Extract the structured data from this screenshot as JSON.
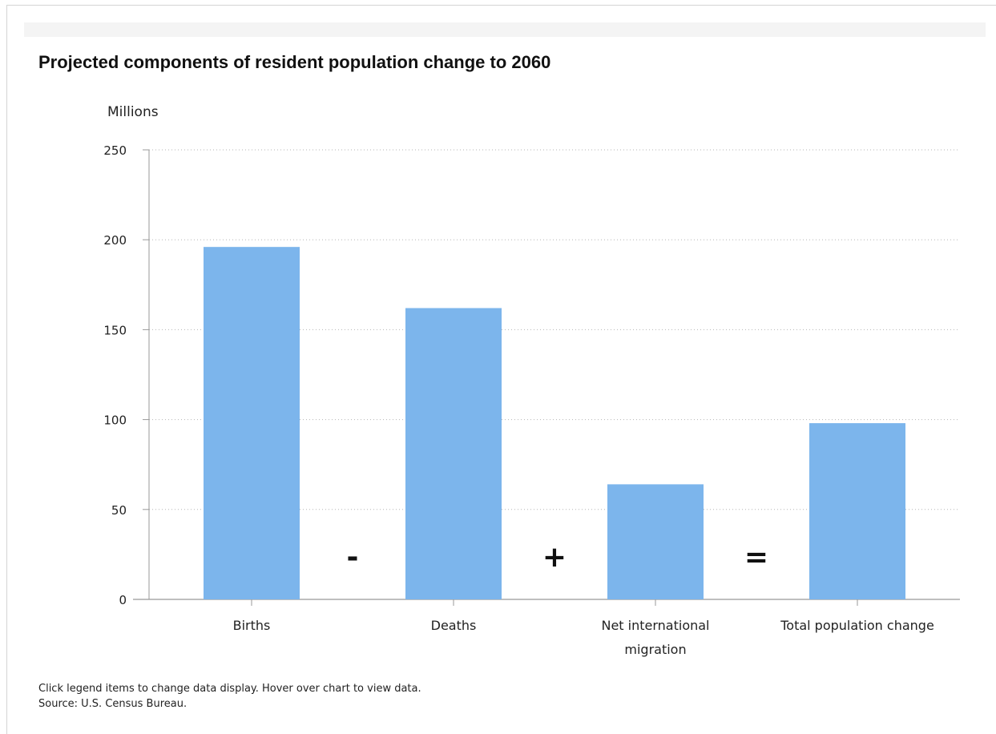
{
  "chart_data": {
    "type": "bar",
    "title": "Projected components of resident population change to 2060",
    "ylabel": "Millions",
    "xlabel": "",
    "categories": [
      [
        "Births"
      ],
      [
        "Deaths"
      ],
      [
        "Net international",
        "migration"
      ],
      [
        "Total population change"
      ]
    ],
    "values": [
      196,
      162,
      64,
      98
    ],
    "operators": [
      "-",
      "+",
      "="
    ],
    "ylim": [
      0,
      250
    ],
    "yticks": [
      0,
      50,
      100,
      150,
      200,
      250
    ],
    "grid": true,
    "bar_color": "#7cb5ec"
  },
  "footer": {
    "note": "Click legend items to change data display. Hover over chart to view data.",
    "source": "Source: U.S. Census Bureau."
  }
}
